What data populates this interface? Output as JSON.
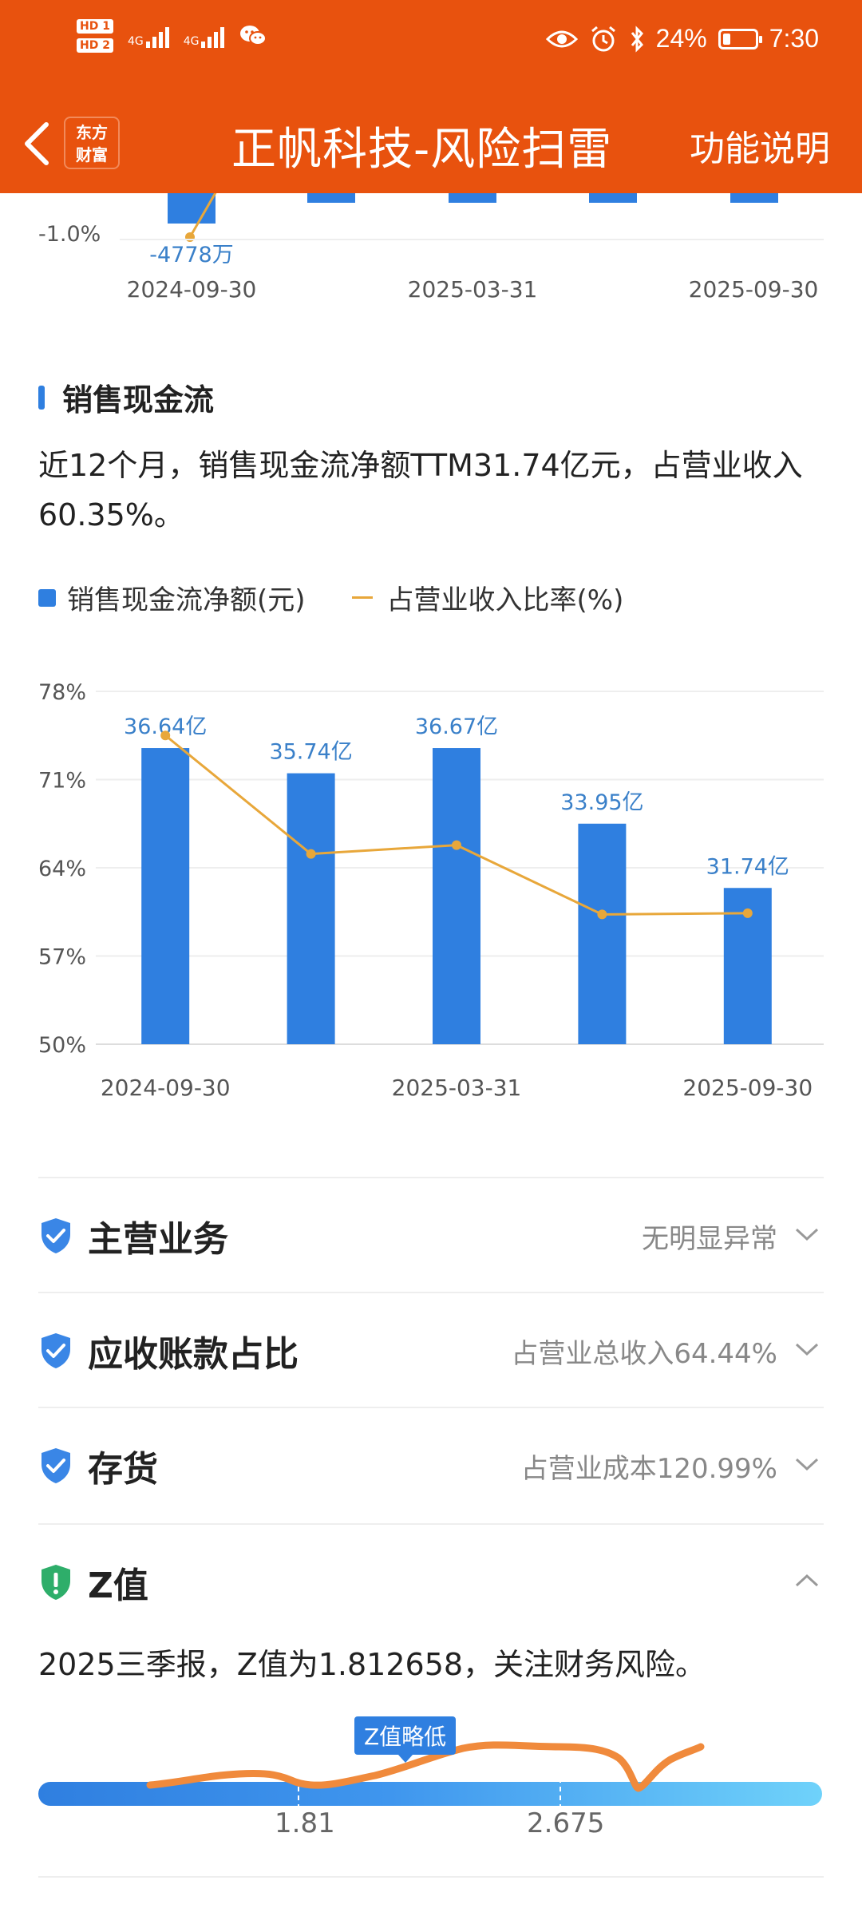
{
  "status": {
    "hd1": "HD 1",
    "hd2": "HD 2",
    "net1": "4G",
    "net2": "4G",
    "battery": "24%",
    "battery_fraction": 0.24,
    "time": "7:30"
  },
  "nav": {
    "logo_line1": "东方",
    "logo_line2": "财富",
    "title": "正帆科技-风险扫雷",
    "help": "功能说明"
  },
  "top_chart": {
    "y_tick": "-1.0%",
    "bar_label": "-4778万",
    "x_ticks": [
      "2024-09-30",
      "2025-03-31",
      "2025-09-30"
    ]
  },
  "cashflow": {
    "section_title": "销售现金流",
    "summary": "近12个月，销售现金流净额TTM31.74亿元，占营业收入60.35%。",
    "legend_bar": "销售现金流净额(元)",
    "legend_line": "占营业收入比率(%)"
  },
  "chart_data": {
    "type": "bar",
    "categories": [
      "2024-09-30",
      "",
      "2025-03-31",
      "",
      "2025-09-30"
    ],
    "x_tick_labels": [
      "2024-09-30",
      "2025-03-31",
      "2025-09-30"
    ],
    "series": [
      {
        "name": "销售现金流净额(元)",
        "type": "bar",
        "values": [
          36.64,
          35.74,
          36.67,
          33.95,
          31.74
        ],
        "labels": [
          "36.64亿",
          "35.74亿",
          "36.67亿",
          "33.95亿",
          "31.74亿"
        ],
        "color": "#2f7fe0"
      },
      {
        "name": "占营业收入比率(%)",
        "type": "line",
        "values": [
          74.5,
          65.1,
          65.8,
          60.3,
          60.4
        ],
        "color": "#e8a73a"
      }
    ],
    "y_ticks": [
      "78%",
      "71%",
      "64%",
      "57%",
      "50%"
    ],
    "ylim": [
      50,
      78
    ],
    "bar_axis_range": [
      31.74,
      36.67
    ],
    "bar_heights_pct": [
      73.5,
      71.5,
      73.5,
      67.5,
      62.4
    ],
    "grid": true,
    "legend": "top-left"
  },
  "rows": [
    {
      "title": "主营业务",
      "value": "无明显异常",
      "state": "collapsed"
    },
    {
      "title": "应收账款占比",
      "value": "占营业总收入64.44%",
      "state": "collapsed"
    },
    {
      "title": "存货",
      "value": "占营业成本120.99%",
      "state": "collapsed"
    },
    {
      "title": "Z值",
      "value": "",
      "state": "expanded"
    }
  ],
  "z_value": {
    "description": "2025三季报，Z值为1.812658，关注财务风险。",
    "tag": "Z值略低",
    "ticks": [
      "1.81",
      "2.675"
    ]
  },
  "colors": {
    "brand": "#e8520e",
    "bar": "#2f7fe0",
    "line": "#e8a73a",
    "shield_blue": "#3a86e6",
    "shield_green": "#2eae6a",
    "annotation": "#f08a3c"
  }
}
